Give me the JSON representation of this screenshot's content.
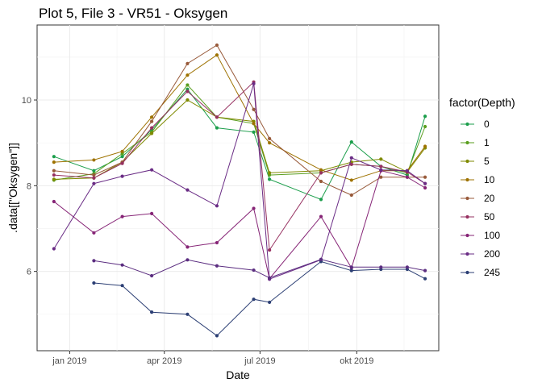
{
  "chart_data": {
    "type": "line",
    "title": "Plot 5, File 3 - VR51  -  Oksygen",
    "xlabel": "Date",
    "ylabel": ".data[[\"Oksygen\"]]",
    "xlim": [
      "2018-12-01",
      "2019-12-18"
    ],
    "ylim": [
      4.15,
      11.75
    ],
    "x_ticks": [
      {
        "date": "2019-01-01",
        "label": "jan 2019"
      },
      {
        "date": "2019-04-01",
        "label": "apr 2019"
      },
      {
        "date": "2019-07-01",
        "label": "jul 2019"
      },
      {
        "date": "2019-10-01",
        "label": "okt 2019"
      }
    ],
    "y_ticks": [
      6,
      8,
      10
    ],
    "grid": true,
    "legend": {
      "title": "factor(Depth)",
      "position": "right"
    },
    "series": [
      {
        "name": "0",
        "color": "#1b9e4b",
        "points": [
          {
            "x": "2018-12-17",
            "y": 8.68
          },
          {
            "x": "2019-01-24",
            "y": 8.35
          },
          {
            "x": "2019-02-20",
            "y": 8.68
          },
          {
            "x": "2019-03-20",
            "y": 9.3
          },
          {
            "x": "2019-04-23",
            "y": 10.25
          },
          {
            "x": "2019-05-21",
            "y": 9.35
          },
          {
            "x": "2019-06-25",
            "y": 9.25
          },
          {
            "x": "2019-07-10",
            "y": 8.15
          },
          {
            "x": "2019-08-28",
            "y": 7.68
          },
          {
            "x": "2019-09-26",
            "y": 9.02
          },
          {
            "x": "2019-10-24",
            "y": 8.45
          },
          {
            "x": "2019-11-18",
            "y": 8.25
          },
          {
            "x": "2019-12-05",
            "y": 9.62
          }
        ]
      },
      {
        "name": "1",
        "color": "#5a9e1e",
        "points": [
          {
            "x": "2018-12-17",
            "y": 8.13
          },
          {
            "x": "2019-01-24",
            "y": 8.28
          },
          {
            "x": "2019-02-20",
            "y": 8.75
          },
          {
            "x": "2019-03-20",
            "y": 9.25
          },
          {
            "x": "2019-04-23",
            "y": 10.35
          },
          {
            "x": "2019-05-21",
            "y": 9.6
          },
          {
            "x": "2019-06-25",
            "y": 9.45
          },
          {
            "x": "2019-07-10",
            "y": 8.25
          },
          {
            "x": "2019-08-28",
            "y": 8.3
          },
          {
            "x": "2019-09-26",
            "y": 8.5
          },
          {
            "x": "2019-10-24",
            "y": 8.45
          },
          {
            "x": "2019-11-18",
            "y": 8.3
          },
          {
            "x": "2019-12-05",
            "y": 9.38
          }
        ]
      },
      {
        "name": "5",
        "color": "#7f8a00",
        "points": [
          {
            "x": "2018-12-17",
            "y": 8.15
          },
          {
            "x": "2019-01-24",
            "y": 8.18
          },
          {
            "x": "2019-02-20",
            "y": 8.55
          },
          {
            "x": "2019-03-20",
            "y": 9.22
          },
          {
            "x": "2019-04-23",
            "y": 10.0
          },
          {
            "x": "2019-05-21",
            "y": 9.6
          },
          {
            "x": "2019-06-25",
            "y": 9.5
          },
          {
            "x": "2019-07-10",
            "y": 8.3
          },
          {
            "x": "2019-08-28",
            "y": 8.35
          },
          {
            "x": "2019-09-26",
            "y": 8.55
          },
          {
            "x": "2019-10-24",
            "y": 8.62
          },
          {
            "x": "2019-11-18",
            "y": 8.32
          },
          {
            "x": "2019-12-05",
            "y": 8.88
          }
        ]
      },
      {
        "name": "10",
        "color": "#9e7200",
        "points": [
          {
            "x": "2018-12-17",
            "y": 8.55
          },
          {
            "x": "2019-01-24",
            "y": 8.6
          },
          {
            "x": "2019-02-20",
            "y": 8.8
          },
          {
            "x": "2019-03-20",
            "y": 9.6
          },
          {
            "x": "2019-04-23",
            "y": 10.58
          },
          {
            "x": "2019-05-21",
            "y": 11.05
          },
          {
            "x": "2019-06-25",
            "y": 9.45
          },
          {
            "x": "2019-07-10",
            "y": 9.0
          },
          {
            "x": "2019-08-28",
            "y": 8.37
          },
          {
            "x": "2019-09-26",
            "y": 8.13
          },
          {
            "x": "2019-10-24",
            "y": 8.35
          },
          {
            "x": "2019-11-18",
            "y": 8.35
          },
          {
            "x": "2019-12-05",
            "y": 8.92
          }
        ]
      },
      {
        "name": "20",
        "color": "#985a3a",
        "points": [
          {
            "x": "2018-12-17",
            "y": 8.35
          },
          {
            "x": "2019-01-24",
            "y": 8.25
          },
          {
            "x": "2019-02-20",
            "y": 8.55
          },
          {
            "x": "2019-03-20",
            "y": 9.5
          },
          {
            "x": "2019-04-23",
            "y": 10.85
          },
          {
            "x": "2019-05-21",
            "y": 11.28
          },
          {
            "x": "2019-06-25",
            "y": 9.78
          },
          {
            "x": "2019-07-10",
            "y": 9.1
          },
          {
            "x": "2019-08-28",
            "y": 8.1
          },
          {
            "x": "2019-09-26",
            "y": 7.78
          },
          {
            "x": "2019-10-24",
            "y": 8.2
          },
          {
            "x": "2019-11-18",
            "y": 8.2
          },
          {
            "x": "2019-12-05",
            "y": 8.2
          }
        ]
      },
      {
        "name": "50",
        "color": "#963060",
        "points": [
          {
            "x": "2018-12-17",
            "y": 8.25
          },
          {
            "x": "2019-01-24",
            "y": 8.18
          },
          {
            "x": "2019-02-20",
            "y": 8.52
          },
          {
            "x": "2019-03-20",
            "y": 9.35
          },
          {
            "x": "2019-04-23",
            "y": 10.2
          },
          {
            "x": "2019-05-21",
            "y": 9.6
          },
          {
            "x": "2019-06-25",
            "y": 10.42
          },
          {
            "x": "2019-07-10",
            "y": 6.5
          },
          {
            "x": "2019-08-28",
            "y": 8.3
          },
          {
            "x": "2019-09-26",
            "y": 8.5
          },
          {
            "x": "2019-10-24",
            "y": 8.45
          },
          {
            "x": "2019-11-18",
            "y": 8.32
          },
          {
            "x": "2019-12-05",
            "y": 8.05
          }
        ]
      },
      {
        "name": "100",
        "color": "#862476",
        "points": [
          {
            "x": "2018-12-17",
            "y": 7.63
          },
          {
            "x": "2019-01-24",
            "y": 6.9
          },
          {
            "x": "2019-02-20",
            "y": 7.28
          },
          {
            "x": "2019-03-20",
            "y": 7.35
          },
          {
            "x": "2019-04-23",
            "y": 6.57
          },
          {
            "x": "2019-05-21",
            "y": 6.67
          },
          {
            "x": "2019-06-25",
            "y": 7.47
          },
          {
            "x": "2019-07-10",
            "y": 5.83
          },
          {
            "x": "2019-08-28",
            "y": 7.28
          },
          {
            "x": "2019-09-26",
            "y": 6.08
          },
          {
            "x": "2019-10-24",
            "y": 8.35
          },
          {
            "x": "2019-11-18",
            "y": 8.2
          },
          {
            "x": "2019-12-05",
            "y": 7.95
          }
        ]
      },
      {
        "name": "200",
        "color": "#6a2c85",
        "points": [
          {
            "x": "2018-12-17",
            "y": 6.53
          },
          {
            "x": "2019-01-24",
            "y": 8.05
          },
          {
            "x": "2019-02-20",
            "y": 8.22
          },
          {
            "x": "2019-03-20",
            "y": 8.37
          },
          {
            "x": "2019-04-23",
            "y": 7.9
          },
          {
            "x": "2019-05-21",
            "y": 7.53
          },
          {
            "x": "2019-06-25",
            "y": 10.38
          },
          {
            "x": "2019-07-10",
            "y": 5.82
          },
          {
            "x": "2019-08-28",
            "y": 6.27
          },
          {
            "x": "2019-09-26",
            "y": 8.65
          },
          {
            "x": "2019-10-24",
            "y": 8.37
          },
          {
            "x": "2019-11-18",
            "y": 8.35
          },
          {
            "x": "2019-12-05",
            "y": 8.05
          }
        ]
      },
      {
        "name": "245",
        "color": "#2c3f74",
        "points": [
          {
            "x": "2019-01-24",
            "y": 5.73
          },
          {
            "x": "2019-02-20",
            "y": 5.67
          },
          {
            "x": "2019-03-20",
            "y": 5.05
          },
          {
            "x": "2019-04-23",
            "y": 5.0
          },
          {
            "x": "2019-05-21",
            "y": 4.5
          },
          {
            "x": "2019-06-25",
            "y": 5.35
          },
          {
            "x": "2019-07-10",
            "y": 5.28
          },
          {
            "x": "2019-08-28",
            "y": 6.23
          },
          {
            "x": "2019-09-26",
            "y": 6.02
          },
          {
            "x": "2019-10-24",
            "y": 6.05
          },
          {
            "x": "2019-11-18",
            "y": 6.05
          },
          {
            "x": "2019-12-05",
            "y": 5.83
          }
        ]
      },
      {
        "name": "",
        "color": "#5b2d80",
        "points": [
          {
            "x": "2019-01-24",
            "y": 6.25
          },
          {
            "x": "2019-02-20",
            "y": 6.15
          },
          {
            "x": "2019-03-20",
            "y": 5.9
          },
          {
            "x": "2019-04-23",
            "y": 6.27
          },
          {
            "x": "2019-05-21",
            "y": 6.13
          },
          {
            "x": "2019-06-25",
            "y": 6.03
          },
          {
            "x": "2019-07-10",
            "y": 5.85
          },
          {
            "x": "2019-08-28",
            "y": 6.28
          },
          {
            "x": "2019-09-26",
            "y": 6.1
          },
          {
            "x": "2019-10-24",
            "y": 6.1
          },
          {
            "x": "2019-11-18",
            "y": 6.1
          },
          {
            "x": "2019-12-05",
            "y": 6.02
          }
        ]
      }
    ]
  }
}
